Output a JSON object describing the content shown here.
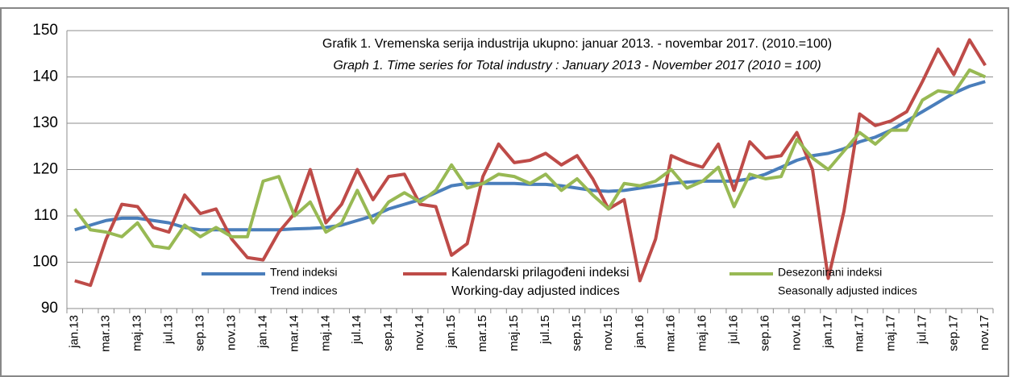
{
  "chart_data": {
    "type": "line",
    "title": "Grafik 1. Vremenska serija industrija ukupno: januar 2013. - novembar 2017. (2010.=100)",
    "subtitle": "Graph 1. Time series for Total industry : January 2013 - November 2017 (2010 = 100)",
    "categories": [
      "jan.13",
      null,
      "mar.13",
      null,
      "maj.13",
      null,
      "jul.13",
      null,
      "sep.13",
      null,
      "nov.13",
      null,
      "jan.14",
      null,
      "mar.14",
      null,
      "maj.14",
      null,
      "jul.14",
      null,
      "sep.14",
      null,
      "nov.14",
      null,
      "jan.15",
      null,
      "mar.15",
      null,
      "maj.15",
      null,
      "jul.15",
      null,
      "sep.15",
      null,
      "nov.15",
      null,
      "jan.16",
      null,
      "mar.16",
      null,
      "maj.16",
      null,
      "jul.16",
      null,
      "sep.16",
      null,
      "nov.16",
      null,
      "jan.17",
      null,
      "mar.17",
      null,
      "maj.17",
      null,
      "jul.17",
      null,
      "sep.17",
      null,
      "nov.17"
    ],
    "series": [
      {
        "name": "Trend indeksi",
        "name_en": "Trend indices",
        "color": "#4a7ebb",
        "values": [
          107,
          108,
          109,
          109.5,
          109.5,
          109,
          108.5,
          107.5,
          107,
          107,
          107,
          107,
          107,
          107,
          107.2,
          107.3,
          107.5,
          108,
          109,
          110,
          111.5,
          112.5,
          113.5,
          115,
          116.5,
          117,
          117,
          117,
          117,
          116.8,
          116.8,
          116.5,
          116,
          115.5,
          115.3,
          115.5,
          116,
          116.5,
          117,
          117.3,
          117.5,
          117.5,
          117.5,
          118,
          119,
          120.5,
          122,
          123,
          123.5,
          124.5,
          126,
          127,
          128.5,
          130.5,
          132.5,
          134.5,
          136.5,
          138,
          139
        ]
      },
      {
        "name": "Kalendarski prilagođeni indeksi",
        "name_en": "Working-day adjusted indices",
        "color": "#be4b48",
        "values": [
          96,
          95,
          105,
          112.5,
          112,
          107.5,
          106.5,
          114.5,
          110.5,
          111.5,
          105,
          101,
          100.5,
          106.5,
          110.5,
          120,
          108.5,
          112.5,
          120,
          113.5,
          118.5,
          119,
          112.5,
          112,
          101.5,
          104,
          118.5,
          125.5,
          121.5,
          122,
          123.5,
          121,
          123,
          118,
          111.5,
          113.5,
          96,
          105,
          123,
          121.5,
          120.5,
          125.5,
          115.5,
          126,
          122.5,
          123,
          128,
          120,
          96.5,
          111,
          132,
          129.5,
          130.5,
          132.5,
          139,
          146,
          140.5,
          148,
          142.5
        ]
      },
      {
        "name": "Desezonirani indeksi",
        "name_en": "Seasonally adjusted indices",
        "color": "#98b954",
        "values": [
          111.5,
          107,
          106.5,
          105.5,
          108.5,
          103.5,
          103,
          108,
          105.5,
          107.5,
          105.5,
          105.5,
          117.5,
          118.5,
          110,
          113,
          106.5,
          108.5,
          115.5,
          108.5,
          113,
          115,
          113,
          115.5,
          121,
          116,
          117,
          119,
          118.5,
          117,
          119,
          115.5,
          118,
          114.5,
          111.5,
          117,
          116.5,
          117.5,
          120,
          116,
          117.5,
          120.5,
          112,
          119,
          118,
          118.5,
          126.5,
          122.5,
          120,
          124,
          128,
          125.5,
          128.5,
          128.5,
          135,
          137,
          136.5,
          141.5,
          140
        ]
      }
    ],
    "ylim": [
      90,
      150
    ],
    "yticks": [
      90,
      100,
      110,
      120,
      130,
      140,
      150
    ],
    "grid": true
  }
}
